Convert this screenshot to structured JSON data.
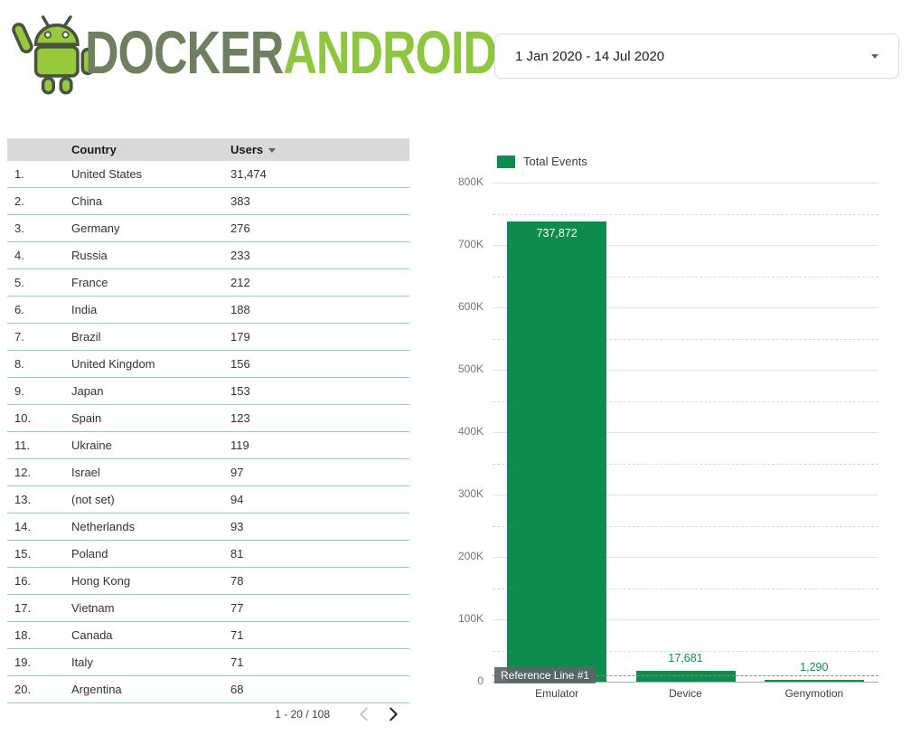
{
  "logo": {
    "part1": "DOCKER",
    "part2": "ANDROID"
  },
  "date_picker": {
    "value": "1 Jan 2020 - 14 Jul 2020"
  },
  "table": {
    "headers": {
      "rank": "",
      "country": "Country",
      "users": "Users"
    },
    "rows": [
      {
        "rank": "1.",
        "country": "United States",
        "users": "31,474"
      },
      {
        "rank": "2.",
        "country": "China",
        "users": "383"
      },
      {
        "rank": "3.",
        "country": "Germany",
        "users": "276"
      },
      {
        "rank": "4.",
        "country": "Russia",
        "users": "233"
      },
      {
        "rank": "5.",
        "country": "France",
        "users": "212"
      },
      {
        "rank": "6.",
        "country": "India",
        "users": "188"
      },
      {
        "rank": "7.",
        "country": "Brazil",
        "users": "179"
      },
      {
        "rank": "8.",
        "country": "United Kingdom",
        "users": "156"
      },
      {
        "rank": "9.",
        "country": "Japan",
        "users": "153"
      },
      {
        "rank": "10.",
        "country": "Spain",
        "users": "123"
      },
      {
        "rank": "11.",
        "country": "Ukraine",
        "users": "119"
      },
      {
        "rank": "12.",
        "country": "Israel",
        "users": "97"
      },
      {
        "rank": "13.",
        "country": "(not set)",
        "users": "94"
      },
      {
        "rank": "14.",
        "country": "Netherlands",
        "users": "93"
      },
      {
        "rank": "15.",
        "country": "Poland",
        "users": "81"
      },
      {
        "rank": "16.",
        "country": "Hong Kong",
        "users": "78"
      },
      {
        "rank": "17.",
        "country": "Vietnam",
        "users": "77"
      },
      {
        "rank": "18.",
        "country": "Canada",
        "users": "71"
      },
      {
        "rank": "19.",
        "country": "Italy",
        "users": "71"
      },
      {
        "rank": "20.",
        "country": "Argentina",
        "users": "68"
      }
    ],
    "pagination": {
      "range_label": "1 - 20 / 108"
    }
  },
  "chart_data": {
    "type": "bar",
    "title": "",
    "legend": [
      {
        "label": "Total Events",
        "color": "#0d8c4d"
      }
    ],
    "legend_position": "top-left",
    "categories": [
      "Emulator",
      "Device",
      "Genymotion"
    ],
    "values": [
      737872,
      17681,
      1290
    ],
    "value_labels": [
      "737,872",
      "17,681",
      "1,290"
    ],
    "xlabel": "",
    "ylabel": "",
    "ylim": [
      0,
      800000
    ],
    "ytick_interval": 100000,
    "ytick_labels": [
      "0",
      "100K",
      "200K",
      "300K",
      "400K",
      "500K",
      "600K",
      "700K",
      "800K"
    ],
    "grid": true,
    "minor_grid_dashed": true,
    "bar_color": "#0d8c4d",
    "reference_line": {
      "label": "Reference Line #1",
      "value": 10000
    }
  },
  "colors": {
    "accent_green": "#0d8c4d",
    "logo_green": "#8dc63f",
    "logo_dark": "#6e8060",
    "row_divider": "#97d1ad",
    "table_header_bg": "#d9d9d9"
  }
}
